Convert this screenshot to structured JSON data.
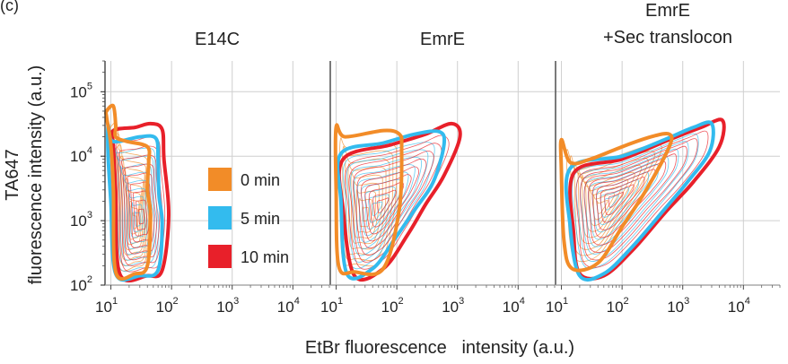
{
  "corner_label": "(c)",
  "axes": {
    "xlabel": "EtBr fluorescence   intensity (a.u.)",
    "ylabel_line1": "TA647",
    "ylabel_line2": "fluorescence intensity (a.u.)"
  },
  "legend": [
    {
      "label": "0 min",
      "color": "#f28c28"
    },
    {
      "label": "5 min",
      "color": "#33bbee"
    },
    {
      "label": "10 min",
      "color": "#e8202a"
    }
  ],
  "chart_data": [
    {
      "type": "contour",
      "title_lines": [
        "E14C"
      ],
      "x_scale": "log",
      "y_scale": "log",
      "xlim": [
        8,
        40000
      ],
      "ylim": [
        100,
        300000
      ],
      "x_ticks": [
        {
          "base": "10",
          "exp": "1",
          "value": 10
        },
        {
          "base": "10",
          "exp": "2",
          "value": 100
        },
        {
          "base": "10",
          "exp": "3",
          "value": 1000
        },
        {
          "base": "10",
          "exp": "4",
          "value": 10000
        }
      ],
      "y_ticks": [
        {
          "base": "10",
          "exp": "2",
          "value": 100
        },
        {
          "base": "10",
          "exp": "3",
          "value": 1000
        },
        {
          "base": "10",
          "exp": "4",
          "value": 10000
        },
        {
          "base": "10",
          "exp": "5",
          "value": 100000
        }
      ],
      "grid": true,
      "series": [
        {
          "name": "0 min",
          "center": [
            25,
            900
          ],
          "spread": [
            2.8,
            6.0
          ],
          "outer": [
            [
              8.5,
              50000
            ],
            [
              11,
              60000
            ],
            [
              12,
              30000
            ],
            [
              12,
              20000
            ],
            [
              18,
              17000
            ],
            [
              40,
              14000
            ],
            [
              42,
              8000
            ],
            [
              40,
              3000
            ],
            [
              45,
              1200
            ],
            [
              40,
              200
            ],
            [
              25,
              150
            ],
            [
              12,
              160
            ],
            [
              11,
              3000
            ],
            [
              10,
              15000
            ],
            [
              8.5,
              40000
            ]
          ]
        },
        {
          "name": "5 min",
          "center": [
            28,
            1000
          ],
          "spread": [
            2.8,
            6.0
          ],
          "outer": [
            [
              9,
              30000
            ],
            [
              10,
              18000
            ],
            [
              14,
              17000
            ],
            [
              30,
              20000
            ],
            [
              55,
              19000
            ],
            [
              60,
              9000
            ],
            [
              62,
              2500
            ],
            [
              70,
              900
            ],
            [
              60,
              170
            ],
            [
              30,
              140
            ],
            [
              12,
              150
            ],
            [
              10,
              2000
            ],
            [
              9,
              10000
            ]
          ]
        },
        {
          "name": "10 min",
          "center": [
            32,
            1100
          ],
          "spread": [
            2.8,
            6.0
          ],
          "outer": [
            [
              11,
              25000
            ],
            [
              25,
              28000
            ],
            [
              45,
              32000
            ],
            [
              70,
              26000
            ],
            [
              75,
              9000
            ],
            [
              90,
              1200
            ],
            [
              70,
              170
            ],
            [
              40,
              140
            ],
            [
              14,
              150
            ],
            [
              12,
              3000
            ],
            [
              11,
              15000
            ]
          ]
        }
      ]
    },
    {
      "type": "contour",
      "title_lines": [
        "EmrE"
      ],
      "x_scale": "log",
      "y_scale": "log",
      "xlim": [
        8,
        40000
      ],
      "ylim": [
        100,
        300000
      ],
      "x_ticks": [
        {
          "base": "10",
          "exp": "1",
          "value": 10
        },
        {
          "base": "10",
          "exp": "2",
          "value": 100
        },
        {
          "base": "10",
          "exp": "3",
          "value": 1000
        },
        {
          "base": "10",
          "exp": "4",
          "value": 10000
        }
      ],
      "y_ticks": [
        {
          "base": "10",
          "exp": "2",
          "value": 100
        },
        {
          "base": "10",
          "exp": "3",
          "value": 1000
        },
        {
          "base": "10",
          "exp": "4",
          "value": 10000
        },
        {
          "base": "10",
          "exp": "5",
          "value": 100000
        }
      ],
      "grid": true,
      "series": [
        {
          "name": "0 min",
          "center": [
            30,
            1200
          ],
          "spread": [
            3.5,
            6.0
          ],
          "outer": [
            [
              10,
              28000
            ],
            [
              14,
              20000
            ],
            [
              60,
              25000
            ],
            [
              110,
              22000
            ],
            [
              120,
              13000
            ],
            [
              110,
              1500
            ],
            [
              60,
              180
            ],
            [
              20,
              160
            ],
            [
              11,
              200
            ],
            [
              10,
              3000
            ]
          ]
        },
        {
          "name": "5 min",
          "center": [
            45,
            1500
          ],
          "spread": [
            4.5,
            6.0
          ],
          "outer": [
            [
              12,
              11000
            ],
            [
              60,
              16000
            ],
            [
              200,
              22000
            ],
            [
              500,
              24000
            ],
            [
              600,
              15000
            ],
            [
              400,
              4000
            ],
            [
              200,
              1500
            ],
            [
              90,
              500
            ],
            [
              40,
              180
            ],
            [
              15,
              150
            ],
            [
              12,
              2000
            ]
          ]
        },
        {
          "name": "10 min",
          "center": [
            55,
            1700
          ],
          "spread": [
            5.0,
            6.0
          ],
          "outer": [
            [
              13,
              9000
            ],
            [
              80,
              15000
            ],
            [
              300,
              22000
            ],
            [
              800,
              32000
            ],
            [
              1100,
              20000
            ],
            [
              600,
              5000
            ],
            [
              300,
              1800
            ],
            [
              150,
              600
            ],
            [
              60,
              180
            ],
            [
              20,
              140
            ],
            [
              13,
              1500
            ]
          ]
        }
      ]
    },
    {
      "type": "contour",
      "title_lines": [
        "EmrE",
        "+Sec translocon"
      ],
      "x_scale": "log",
      "y_scale": "log",
      "xlim": [
        8,
        40000
      ],
      "ylim": [
        100,
        300000
      ],
      "x_ticks": [
        {
          "base": "10",
          "exp": "1",
          "value": 10
        },
        {
          "base": "10",
          "exp": "2",
          "value": 100
        },
        {
          "base": "10",
          "exp": "3",
          "value": 1000
        },
        {
          "base": "10",
          "exp": "4",
          "value": 10000
        }
      ],
      "y_ticks": [
        {
          "base": "10",
          "exp": "2",
          "value": 100
        },
        {
          "base": "10",
          "exp": "3",
          "value": 1000
        },
        {
          "base": "10",
          "exp": "4",
          "value": 10000
        },
        {
          "base": "10",
          "exp": "5",
          "value": 100000
        }
      ],
      "grid": true,
      "series": [
        {
          "name": "0 min",
          "center": [
            45,
            1600
          ],
          "spread": [
            4.5,
            6.0
          ],
          "outer": [
            [
              10,
              18000
            ],
            [
              14,
              8000
            ],
            [
              30,
              9000
            ],
            [
              100,
              14000
            ],
            [
              300,
              20000
            ],
            [
              600,
              22000
            ],
            [
              600,
              14000
            ],
            [
              250,
              3000
            ],
            [
              100,
              800
            ],
            [
              40,
              220
            ],
            [
              15,
              180
            ],
            [
              11,
              500
            ],
            [
              10,
              6000
            ]
          ]
        },
        {
          "name": "5 min",
          "center": [
            60,
            1900
          ],
          "spread": [
            5.5,
            6.0
          ],
          "outer": [
            [
              14,
              6500
            ],
            [
              100,
              10000
            ],
            [
              500,
              18000
            ],
            [
              1500,
              28000
            ],
            [
              3000,
              32000
            ],
            [
              2800,
              12000
            ],
            [
              1200,
              4000
            ],
            [
              500,
              1500
            ],
            [
              150,
              400
            ],
            [
              50,
              150
            ],
            [
              20,
              140
            ],
            [
              14,
              800
            ]
          ]
        },
        {
          "name": "10 min",
          "center": [
            70,
            2100
          ],
          "spread": [
            6.0,
            6.0
          ],
          "outer": [
            [
              16,
              5500
            ],
            [
              100,
              9000
            ],
            [
              600,
              18000
            ],
            [
              2000,
              28000
            ],
            [
              4500,
              36000
            ],
            [
              4000,
              14000
            ],
            [
              1500,
              4000
            ],
            [
              500,
              1300
            ],
            [
              150,
              350
            ],
            [
              50,
              140
            ],
            [
              20,
              150
            ],
            [
              16,
              600
            ]
          ]
        }
      ]
    }
  ]
}
